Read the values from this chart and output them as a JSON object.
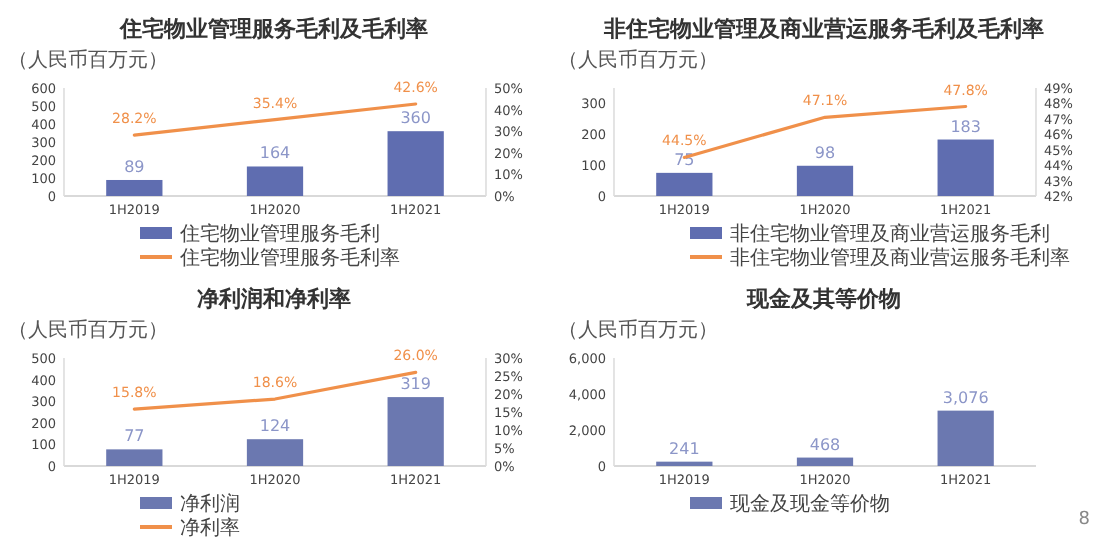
{
  "chart_data": [
    {
      "type": "bar",
      "title": "住宅物业管理服务毛利及毛利率",
      "ylabel": "（人民币百万元）",
      "categories": [
        "1H2019",
        "1H2020",
        "1H2021"
      ],
      "legend": "bottom",
      "series": [
        {
          "name": "住宅物业管理服务毛利",
          "color": "#5f6db0",
          "values": [
            89,
            164,
            360
          ],
          "value_labels": [
            "89",
            "164",
            "360"
          ]
        },
        {
          "name": "住宅物业管理服务毛利率",
          "type": "line",
          "axis": "y2",
          "color": "#f0904a",
          "values": [
            28.2,
            35.4,
            42.6
          ],
          "value_labels": [
            "28.2%",
            "35.4%",
            "42.6%"
          ]
        }
      ],
      "ylim": [
        0,
        600
      ],
      "yticks": [
        0,
        100,
        200,
        300,
        400,
        500,
        600
      ],
      "y2lim": [
        0,
        50
      ],
      "y2ticks": [
        {
          "value": 0,
          "label": "0%"
        },
        {
          "value": 10,
          "label": "10%"
        },
        {
          "value": 20,
          "label": "20%"
        },
        {
          "value": 30,
          "label": "30%"
        },
        {
          "value": 40,
          "label": "40%"
        },
        {
          "value": 50,
          "label": "50%"
        }
      ]
    },
    {
      "type": "bar",
      "title": "非住宅物业管理及商业营运服务毛利及毛利率",
      "ylabel": "（人民币百万元）",
      "categories": [
        "1H2019",
        "1H2020",
        "1H2021"
      ],
      "legend": "bottom",
      "series": [
        {
          "name": "非住宅物业管理及商业营运服务毛利",
          "color": "#5f6db0",
          "values": [
            75,
            98,
            183
          ],
          "value_labels": [
            "75",
            "98",
            "183"
          ]
        },
        {
          "name": "非住宅物业管理及商业营运服务毛利率",
          "type": "line",
          "axis": "y2",
          "color": "#f0904a",
          "values": [
            44.5,
            47.1,
            47.8
          ],
          "value_labels": [
            "44.5%",
            "47.1%",
            "47.8%"
          ]
        }
      ],
      "ylim": [
        0,
        350
      ],
      "yticks": [
        0,
        100,
        200,
        300
      ],
      "y2lim": [
        42,
        49
      ],
      "y2ticks": [
        {
          "value": 42,
          "label": "42%"
        },
        {
          "value": 43,
          "label": "43%"
        },
        {
          "value": 44,
          "label": "44%"
        },
        {
          "value": 45,
          "label": "45%"
        },
        {
          "value": 46,
          "label": "46%"
        },
        {
          "value": 47,
          "label": "47%"
        },
        {
          "value": 48,
          "label": "48%"
        },
        {
          "value": 49,
          "label": "49%"
        }
      ]
    },
    {
      "type": "bar",
      "title": "净利润和净利率",
      "ylabel": "（人民币百万元）",
      "categories": [
        "1H2019",
        "1H2020",
        "1H2021"
      ],
      "legend": "bottom",
      "series": [
        {
          "name": "净利润",
          "color": "#6b78b0",
          "values": [
            77,
            124,
            319
          ],
          "value_labels": [
            "77",
            "124",
            "319"
          ]
        },
        {
          "name": "净利率",
          "type": "line",
          "axis": "y2",
          "color": "#f0904a",
          "values": [
            15.8,
            18.6,
            26.0
          ],
          "value_labels": [
            "15.8%",
            "18.6%",
            "26.0%"
          ]
        }
      ],
      "ylim": [
        0,
        500
      ],
      "yticks": [
        0,
        100,
        200,
        300,
        400,
        500
      ],
      "y2lim": [
        0,
        30
      ],
      "y2ticks": [
        {
          "value": 0,
          "label": "0%"
        },
        {
          "value": 5,
          "label": "5%"
        },
        {
          "value": 10,
          "label": "10%"
        },
        {
          "value": 15,
          "label": "15%"
        },
        {
          "value": 20,
          "label": "20%"
        },
        {
          "value": 25,
          "label": "25%"
        },
        {
          "value": 30,
          "label": "30%"
        }
      ]
    },
    {
      "type": "bar",
      "title": "现金及其等价物",
      "ylabel": "（人民币百万元）",
      "categories": [
        "1H2019",
        "1H2020",
        "1H2021"
      ],
      "legend": "bottom",
      "series": [
        {
          "name": "现金及现金等价物",
          "color": "#6b78b0",
          "values": [
            241,
            468,
            3076
          ],
          "value_labels": [
            "241",
            "468",
            "3,076"
          ]
        }
      ],
      "ylim": [
        0,
        6000
      ],
      "yticks": [
        0,
        {
          "value": 2000,
          "label": "2,000"
        },
        {
          "value": 4000,
          "label": "4,000"
        },
        {
          "value": 6000,
          "label": "6,000"
        }
      ],
      "annotations": [
        "8"
      ]
    }
  ]
}
